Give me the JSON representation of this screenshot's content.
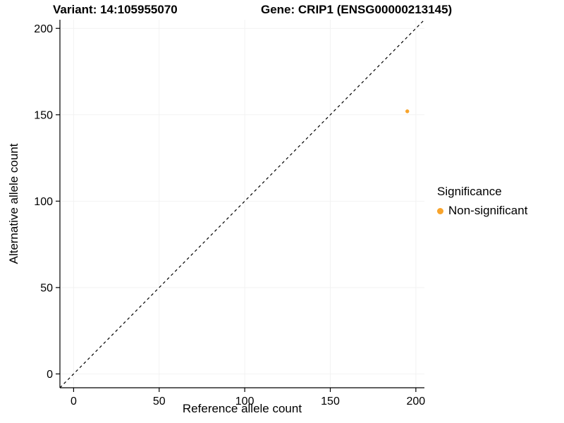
{
  "titles": {
    "variant": "Variant: 14:105955070",
    "gene": "Gene: CRIP1 (ENSG00000213145)"
  },
  "chart_data": {
    "type": "scatter",
    "title": "Variant: 14:105955070 / Gene: CRIP1 (ENSG00000213145)",
    "xlabel": "Reference allele count",
    "ylabel": "Alternative allele count",
    "xlim": [
      -8,
      205
    ],
    "ylim": [
      -8,
      205
    ],
    "xticks": [
      0,
      50,
      100,
      150,
      200
    ],
    "yticks": [
      0,
      50,
      100,
      150,
      200
    ],
    "grid": "faint",
    "series": [
      {
        "name": "Non-significant",
        "color": "#F8A42C",
        "points": [
          {
            "x": 195,
            "y": 152
          }
        ]
      }
    ],
    "reference_line": {
      "type": "identity",
      "style": "dashed",
      "color": "#000000",
      "from": [
        -8,
        -8
      ],
      "to": [
        205,
        205
      ]
    },
    "legend": {
      "title": "Significance",
      "position": "right",
      "entries": [
        {
          "label": "Non-significant",
          "color": "#F8A42C"
        }
      ]
    }
  }
}
